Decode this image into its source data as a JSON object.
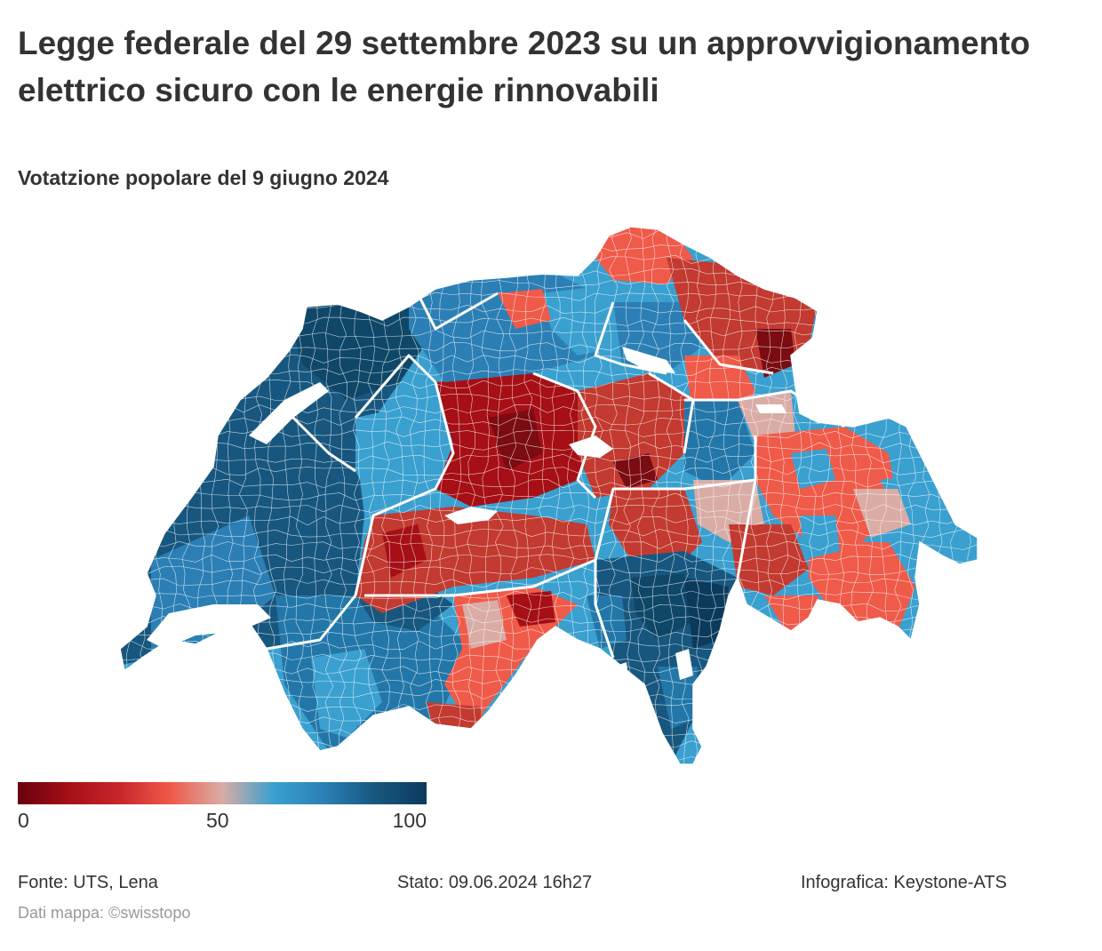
{
  "header": {
    "title": "Legge federale del 29 settembre 2023 su un approvvigionamento elettrico sicuro con le energie rinnovabili",
    "subtitle": "Votatzione popolare del 9 giugno 2024"
  },
  "legend": {
    "labels": [
      "0",
      "50",
      "100"
    ],
    "min": 0,
    "mid": 50,
    "max": 100,
    "colors": [
      "#67000d",
      "#a50f15",
      "#c7272c",
      "#ef5a49",
      "#d9aca6",
      "#3aa0cf",
      "#2b7fb5",
      "#17577f",
      "#0b3a5c"
    ]
  },
  "colors": {
    "dark_red": "#7a0c12",
    "red": "#c23a30",
    "light_red": "#ef5a49",
    "neutral": "#d9aca6",
    "light_blue": "#3aa0cf",
    "blue": "#2277a8",
    "dark_blue": "#0f4768",
    "border": "#ffffff"
  },
  "footer": {
    "source": "Fonte: UTS, Lena",
    "status": "Stato: 09.06.2024 16h27",
    "infographic": "Infografica: Keystone-ATS",
    "map_credit": "Dati mappa: ©swisstopo"
  }
}
